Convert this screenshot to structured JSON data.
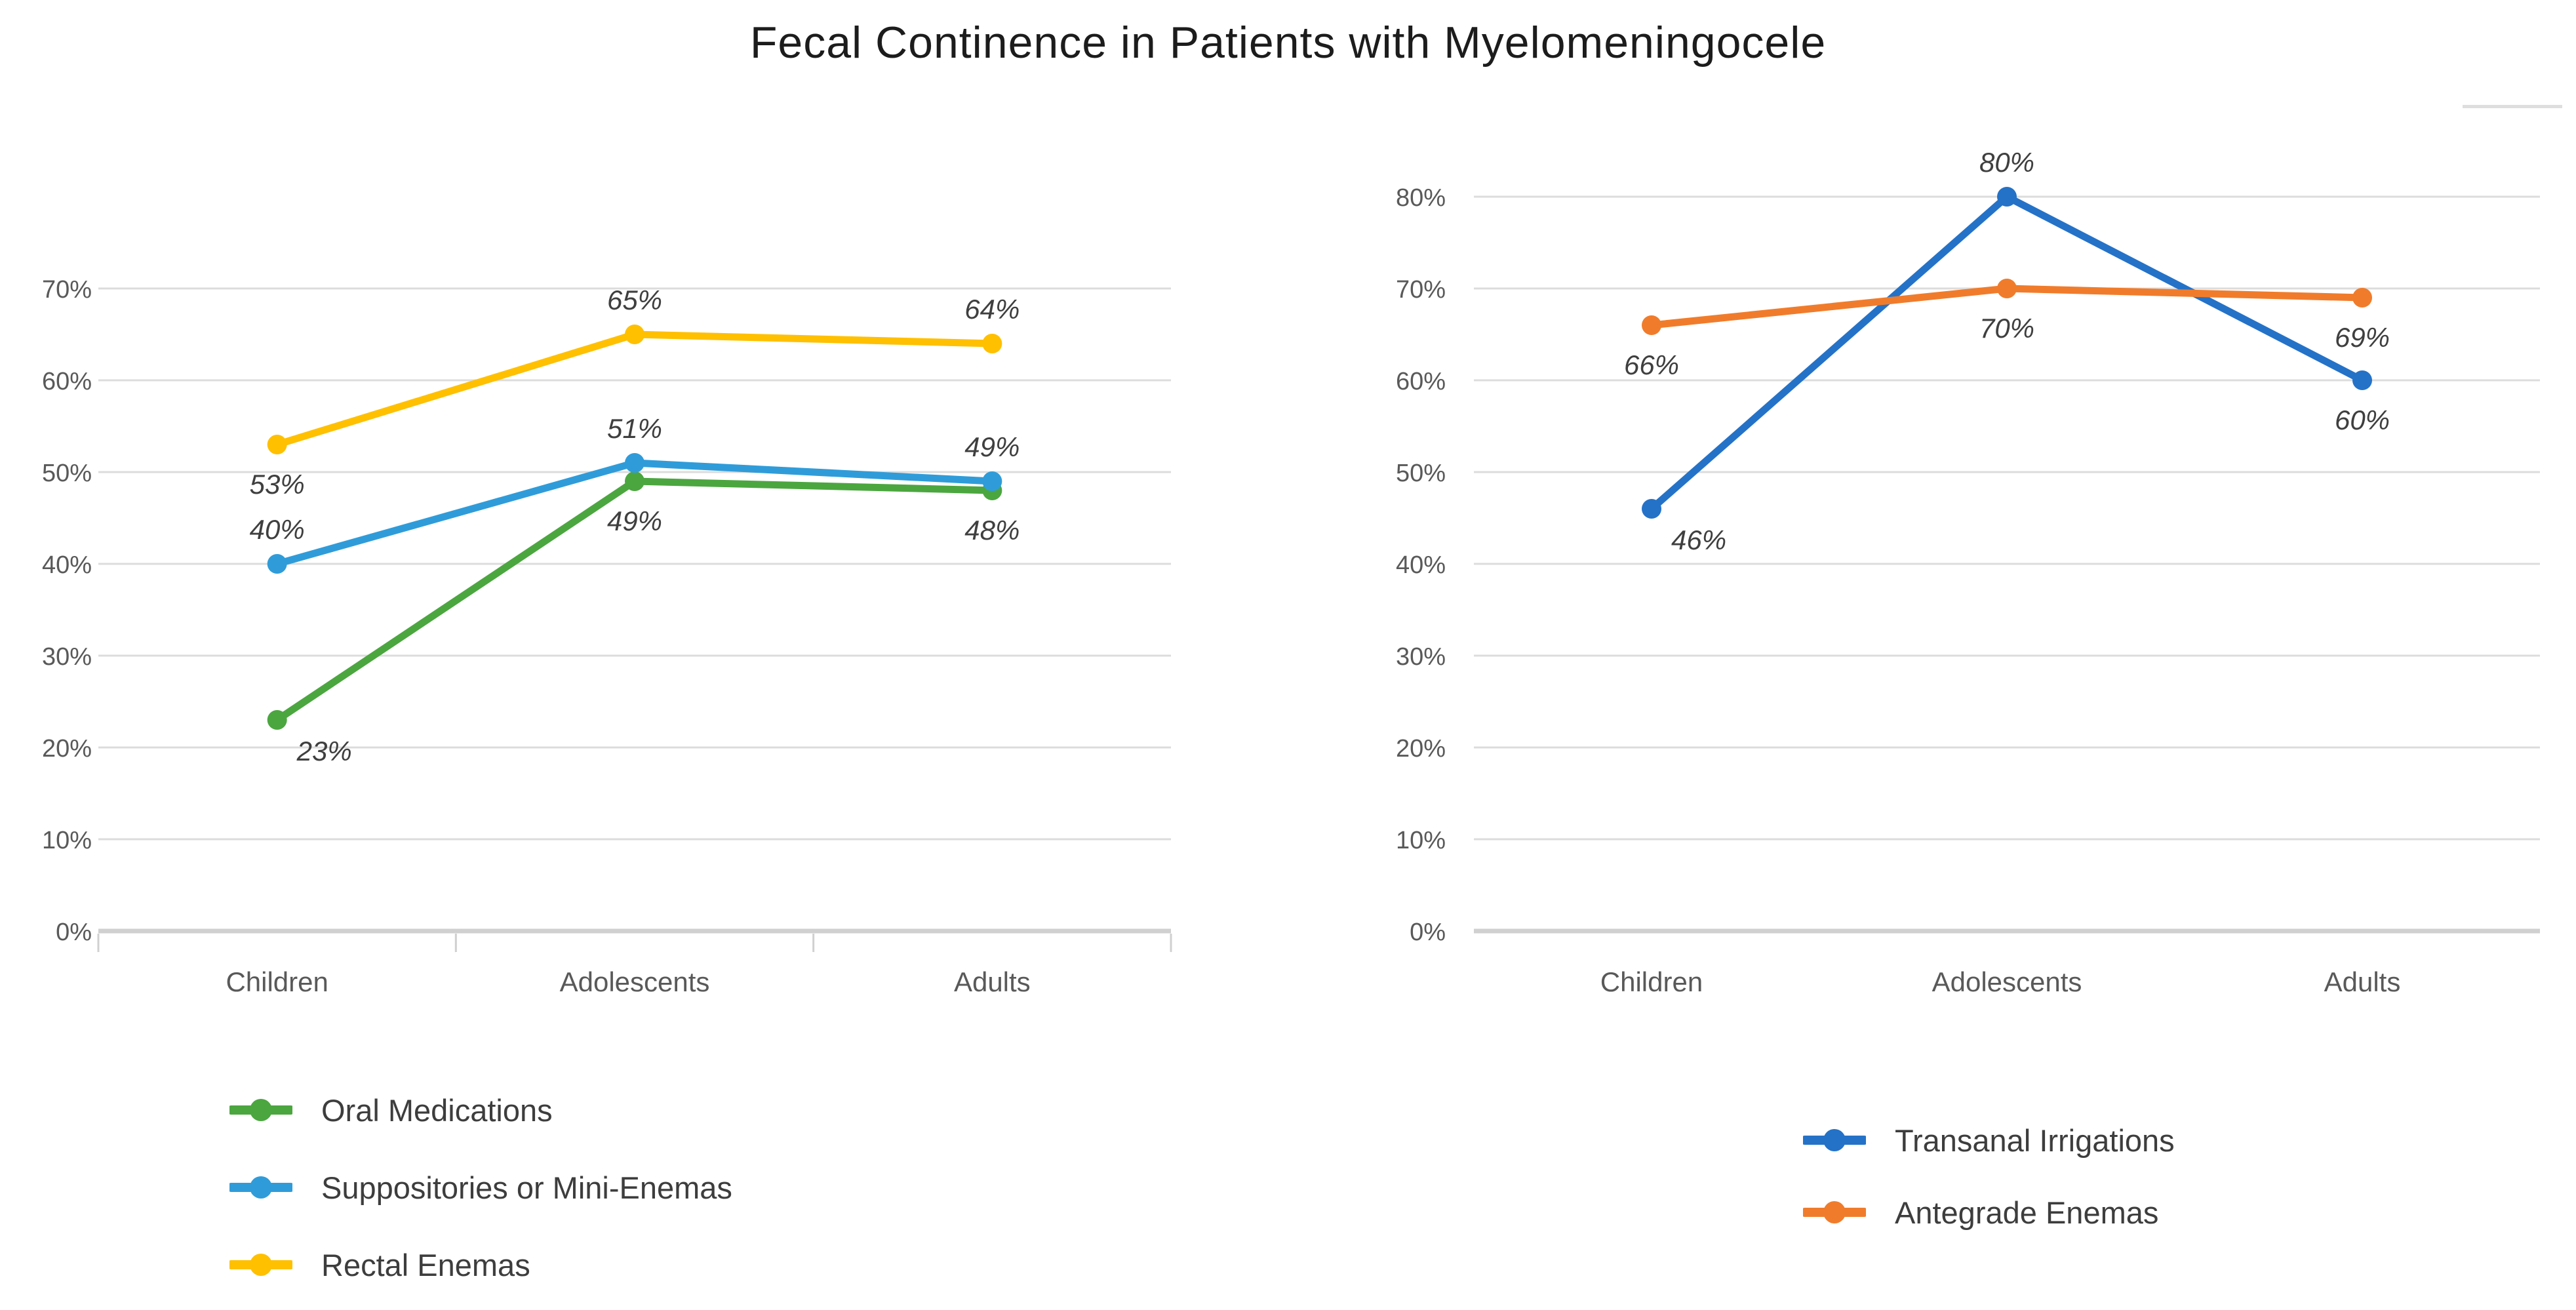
{
  "title": "Fecal Continence in Patients with Myelomeningocele",
  "chart_data": [
    {
      "type": "line",
      "position": "left",
      "title": "",
      "xlabel": "",
      "ylabel": "",
      "categories": [
        "Children",
        "Adolescents",
        "Adults"
      ],
      "y_ticks": [
        "0%",
        "10%",
        "20%",
        "30%",
        "40%",
        "50%",
        "60%",
        "70%"
      ],
      "ylim": [
        0,
        70
      ],
      "grid": true,
      "legend_position": "below-left",
      "series": [
        {
          "name": "Oral Medications",
          "color": "#4ba63f",
          "values": [
            23,
            49,
            48
          ],
          "data_labels": [
            "23%",
            "49%",
            "48%"
          ],
          "label_pos": [
            "right-below",
            "below",
            "below"
          ]
        },
        {
          "name": "Suppositories or Mini-Enemas",
          "color": "#2f9cd9",
          "values": [
            40,
            51,
            49
          ],
          "data_labels": [
            "40%",
            "51%",
            "49%"
          ],
          "label_pos": [
            "above",
            "above",
            "above"
          ]
        },
        {
          "name": "Rectal Enemas",
          "color": "#ffc000",
          "values": [
            53,
            65,
            64
          ],
          "data_labels": [
            "53%",
            "65%",
            "64%"
          ],
          "label_pos": [
            "below",
            "above",
            "above"
          ]
        }
      ]
    },
    {
      "type": "line",
      "position": "right",
      "title": "",
      "xlabel": "",
      "ylabel": "",
      "categories": [
        "Children",
        "Adolescents",
        "Adults"
      ],
      "y_ticks": [
        "0%",
        "10%",
        "20%",
        "30%",
        "40%",
        "50%",
        "60%",
        "70%",
        "80%"
      ],
      "ylim": [
        0,
        80
      ],
      "grid": true,
      "legend_position": "below-right",
      "series": [
        {
          "name": "Transanal Irrigations",
          "color": "#2472c8",
          "values": [
            46,
            80,
            60
          ],
          "data_labels": [
            "46%",
            "80%",
            "60%"
          ],
          "label_pos": [
            "right-below",
            "above",
            "below"
          ]
        },
        {
          "name": "Antegrade Enemas",
          "color": "#f07c2b",
          "values": [
            66,
            70,
            69
          ],
          "data_labels": [
            "66%",
            "70%",
            "69%"
          ],
          "label_pos": [
            "below",
            "below",
            "below"
          ]
        }
      ]
    }
  ]
}
